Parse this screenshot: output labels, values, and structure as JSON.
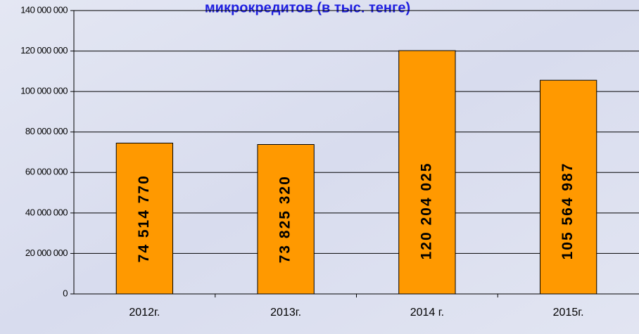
{
  "chart_data": {
    "type": "bar",
    "title": "микрокредитов (в тыс. тенге)",
    "categories": [
      "2012г.",
      "2013г.",
      "2014 г.",
      "2015г."
    ],
    "values": [
      74514770,
      73825320,
      120204025,
      105564987
    ],
    "value_labels": [
      "74 514 770",
      "73 825 320",
      "120 204 025",
      "105 564 987"
    ],
    "color": "#ff9900",
    "ylim": [
      0,
      140000000
    ],
    "yticks": [
      {
        "value": 0,
        "label": "0"
      },
      {
        "value": 20000000,
        "label": "20 000 000"
      },
      {
        "value": 40000000,
        "label": "40 000 000"
      },
      {
        "value": 60000000,
        "label": "60 000 000"
      },
      {
        "value": 80000000,
        "label": "80 000 000"
      },
      {
        "value": 100000000,
        "label": "100 000 000"
      },
      {
        "value": 120000000,
        "label": "120 000 000"
      },
      {
        "value": 140000000,
        "label": "140 000 000"
      }
    ],
    "grid": true
  }
}
